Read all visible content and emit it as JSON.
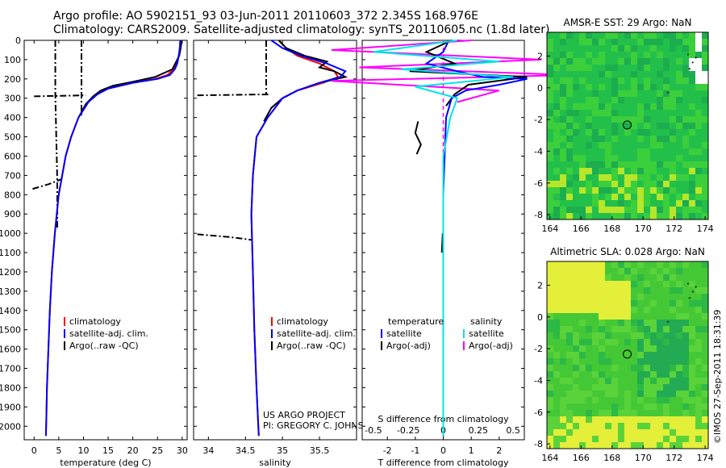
{
  "header": {
    "line1": "Argo profile: AO 5902151_93 03-Jun-2011 20110603_372 2.345S 168.976E",
    "line2": "Climatology: CARS2009. Satellite-adjusted climatology: synTS_20110605.nc (1.8d later)"
  },
  "watermark": "©IMOS 27-Sep-2011 18:31:39",
  "project": {
    "line1": "US ARGO PROJECT",
    "line2": "PI: GREGORY C. JOHNSON"
  },
  "colors": {
    "climatology": "#ff0000",
    "satellite": "#0000ff",
    "argo": "#000000",
    "sat_salinity": "#00e5e5",
    "argo_salinity": "#ff00ff"
  },
  "chart_data": [
    {
      "type": "line",
      "panel": "temperature",
      "xlabel": "temperature (deg C)",
      "xlim": [
        -2,
        31
      ],
      "ylim": [
        0,
        2070
      ],
      "xticks": [
        0,
        5,
        10,
        15,
        20,
        25,
        30
      ],
      "yticks": [
        0,
        100,
        200,
        300,
        400,
        500,
        600,
        700,
        800,
        900,
        1000,
        1100,
        1200,
        1300,
        1400,
        1500,
        1600,
        1700,
        1800,
        1900,
        2000
      ],
      "legend": [
        "climatology",
        "satellite-adj. clim.",
        "Argo(..raw -QC)"
      ],
      "series": [
        {
          "name": "climatology",
          "x": [
            29.8,
            29.6,
            29.3,
            28.8,
            28.2,
            27.0,
            24.5,
            20.0,
            15.0,
            12.5,
            11.0,
            9.0,
            7.5,
            6.4,
            5.7,
            5.0,
            4.2,
            3.6,
            3.2,
            2.9,
            2.6,
            2.5,
            2.4
          ],
          "y": [
            0,
            40,
            80,
            120,
            150,
            180,
            200,
            220,
            250,
            280,
            320,
            400,
            500,
            600,
            700,
            800,
            1000,
            1200,
            1400,
            1600,
            1800,
            1950,
            2050
          ]
        },
        {
          "name": "satellite-adj. clim.",
          "x": [
            29.6,
            29.5,
            29.3,
            29.0,
            28.5,
            27.5,
            25.0,
            20.0,
            15.0,
            12.8,
            11.0,
            9.0,
            7.5,
            6.4,
            5.7,
            5.0,
            4.2,
            3.6,
            3.2,
            2.9,
            2.6,
            2.5,
            2.4
          ],
          "y": [
            0,
            40,
            80,
            120,
            150,
            180,
            200,
            220,
            250,
            280,
            320,
            400,
            500,
            600,
            700,
            800,
            1000,
            1200,
            1400,
            1600,
            1800,
            1950,
            2050
          ]
        },
        {
          "name": "Argo(..raw -QC)",
          "x": [
            29.9,
            29.7,
            29.4,
            28.0,
            24.5,
            20.0,
            16.0,
            13.5,
            12.0,
            10.5,
            9.0
          ],
          "y": [
            0,
            40,
            80,
            150,
            190,
            215,
            235,
            260,
            290,
            330,
            400
          ]
        }
      ]
    },
    {
      "type": "line",
      "panel": "salinity",
      "xlabel": "salinity",
      "xlim": [
        33.8,
        36.0
      ],
      "ylim": [
        0,
        2070
      ],
      "xticks": [
        34,
        34.5,
        35,
        35.5
      ],
      "legend": [
        "climatology",
        "satellite-adj. clim.",
        "Argo(..raw -QC)"
      ],
      "series": [
        {
          "name": "climatology",
          "x": [
            34.95,
            35.05,
            35.2,
            35.5,
            35.7,
            35.75,
            35.55,
            35.2,
            35.0,
            34.8,
            34.65,
            34.6,
            34.58,
            34.6,
            34.62,
            34.65,
            34.68
          ],
          "y": [
            0,
            40,
            80,
            120,
            160,
            190,
            220,
            260,
            300,
            400,
            500,
            700,
            900,
            1200,
            1500,
            1800,
            2050
          ]
        },
        {
          "name": "satellite-adj. clim.",
          "x": [
            34.85,
            35.0,
            35.25,
            35.6,
            35.85,
            35.78,
            35.5,
            35.2,
            35.0,
            34.8,
            34.65,
            34.6,
            34.58,
            34.6,
            34.62,
            34.65,
            34.68
          ],
          "y": [
            0,
            40,
            80,
            120,
            160,
            190,
            220,
            260,
            300,
            400,
            500,
            700,
            900,
            1200,
            1500,
            1800,
            2050
          ]
        },
        {
          "name": "Argo(..raw -QC)",
          "x": [
            34.95,
            35.05,
            35.3,
            35.6,
            35.5,
            35.7,
            35.85,
            35.5,
            35.2,
            35.0,
            34.85,
            34.75
          ],
          "y": [
            0,
            40,
            80,
            110,
            140,
            160,
            190,
            220,
            260,
            300,
            350,
            420
          ]
        }
      ]
    },
    {
      "type": "line",
      "panel": "difference",
      "xlabel": "T difference from climatology",
      "xlabel2": "S difference from climatology",
      "xlim": [
        -2.9,
        2.9
      ],
      "ylim": [
        0,
        2070
      ],
      "xticks_t": [
        -2,
        -1,
        0,
        1,
        2
      ],
      "xticks_s": [
        -0.5,
        -0.25,
        0,
        0.25,
        0.5
      ],
      "legend_header": [
        "temperature",
        "salinity"
      ],
      "legend": [
        "satellite",
        "Argo(-adj)",
        "satellite",
        "Argo(-adj)"
      ],
      "series": [
        {
          "name": "T satellite",
          "x": [
            0.2,
            0.0,
            -0.6,
            0.5,
            1.4,
            3.0,
            2.0,
            0.8,
            0.3,
            0.1,
            0.05,
            0.0,
            0.0,
            0.0,
            0.0
          ],
          "y": [
            0,
            60,
            120,
            160,
            190,
            200,
            230,
            260,
            300,
            400,
            600,
            800,
            1200,
            1600,
            2050
          ]
        },
        {
          "name": "T Argo(-adj)",
          "x": [
            0.3,
            -0.6,
            0.4,
            -1.2,
            3.0,
            0.9,
            0.4,
            0.1
          ],
          "y": [
            0,
            60,
            120,
            160,
            190,
            230,
            280,
            340
          ]
        },
        {
          "name": "S satellite",
          "x": [
            0.1,
            -0.5,
            0.4,
            -0.3,
            0.5,
            -0.2,
            0.1,
            0.05,
            0.0,
            0.0,
            0.0,
            0.0
          ],
          "y": [
            0,
            60,
            110,
            150,
            190,
            240,
            300,
            400,
            600,
            1000,
            1500,
            2050
          ]
        },
        {
          "name": "S Argo(-adj)",
          "x": [
            0.2,
            -0.8,
            0.7,
            -0.6,
            0.9,
            -0.8,
            0.4,
            0.1
          ],
          "y": [
            0,
            50,
            100,
            140,
            180,
            210,
            260,
            320
          ]
        }
      ]
    },
    {
      "type": "heatmap",
      "panel": "sst_map",
      "title": "AMSR-E SST: 29 Argo: NaN",
      "xlim": [
        163.8,
        174.2
      ],
      "ylim": [
        -8.3,
        3.5
      ],
      "xticks": [
        164,
        166,
        168,
        170,
        172,
        174
      ],
      "yticks": [
        2,
        0,
        -2,
        -4,
        -6,
        -8
      ],
      "marker": {
        "lon": 168.976,
        "lat": -2.345
      }
    },
    {
      "type": "heatmap",
      "panel": "sla_map",
      "title": "Altimetric SLA: 0.028 Argo: NaN",
      "xlim": [
        163.8,
        174.2
      ],
      "ylim": [
        -8.3,
        3.5
      ],
      "xticks": [
        164,
        166,
        168,
        170,
        172,
        174
      ],
      "yticks": [
        2,
        0,
        -2,
        -4,
        -6,
        -8
      ],
      "marker": {
        "lon": 168.976,
        "lat": -2.345
      }
    }
  ]
}
